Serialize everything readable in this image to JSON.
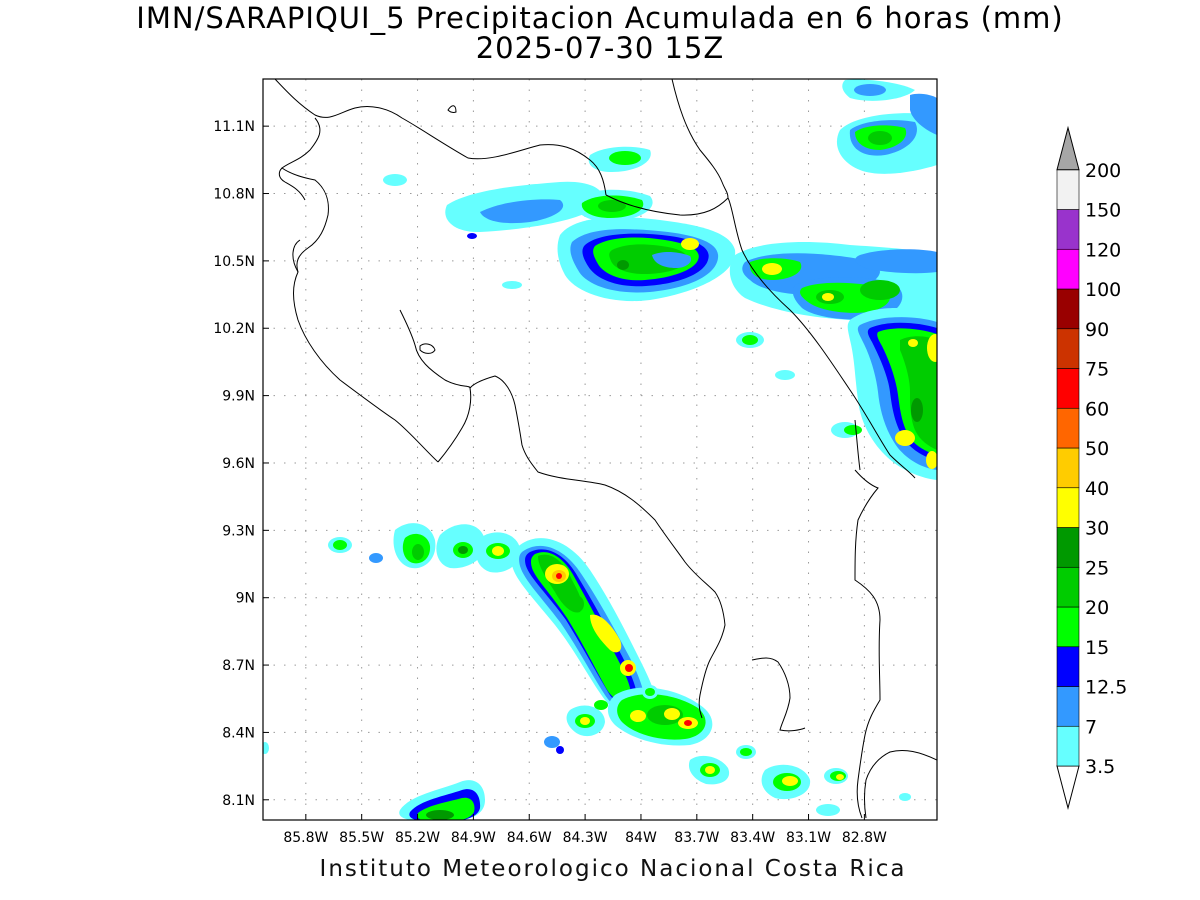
{
  "map": {
    "title": "IMN/SARAPIQUI_5 Precipitacion Acumulada en 6 horas (mm)",
    "subtitle": "2025-07-30 15Z",
    "credit": "Instituto Meteorologico Nacional Costa Rica",
    "lat_labels": [
      "11.1N",
      "10.8N",
      "10.5N",
      "10.2N",
      "9.9N",
      "9.6N",
      "9.3N",
      "9N",
      "8.7N",
      "8.4N",
      "8.1N"
    ],
    "lon_labels": [
      "85.8W",
      "85.5W",
      "85.2W",
      "84.9W",
      "84.6W",
      "84.3W",
      "84W",
      "83.7W",
      "83.4W",
      "83.1W",
      "82.8W"
    ],
    "lat_values": [
      11.1,
      10.8,
      10.5,
      10.2,
      9.9,
      9.6,
      9.3,
      9.0,
      8.7,
      8.4,
      8.1
    ],
    "lon_values": [
      -85.8,
      -85.5,
      -85.2,
      -84.9,
      -84.6,
      -84.3,
      -84.0,
      -83.7,
      -83.4,
      -83.1,
      -82.8
    ],
    "extent": {
      "lon_min": -86.03,
      "lon_max": -82.41,
      "lat_min": 8.01,
      "lat_max": 11.31
    }
  },
  "legend": {
    "labels": [
      "3.5",
      "7",
      "12.5",
      "15",
      "20",
      "25",
      "30",
      "40",
      "50",
      "60",
      "75",
      "90",
      "100",
      "120",
      "150",
      "200"
    ],
    "colors": [
      "#66ffff",
      "#3399ff",
      "#0000ff",
      "#00ff00",
      "#00cc00",
      "#009900",
      "#ffff00",
      "#ffcc00",
      "#ff6600",
      "#ff0000",
      "#cc3300",
      "#990000",
      "#ff00ff",
      "#9933cc",
      "#f2f2f2",
      "#a6a6a6"
    ]
  },
  "colors": {
    "light_cyan": "#66ffff",
    "blue_light": "#3399ff",
    "blue": "#0000ff",
    "green_bright": "#00ff00",
    "green": "#00cc00",
    "green_dark": "#009900",
    "yellow": "#ffff00",
    "orange": "#ffcc00",
    "red": "#ff0000"
  }
}
